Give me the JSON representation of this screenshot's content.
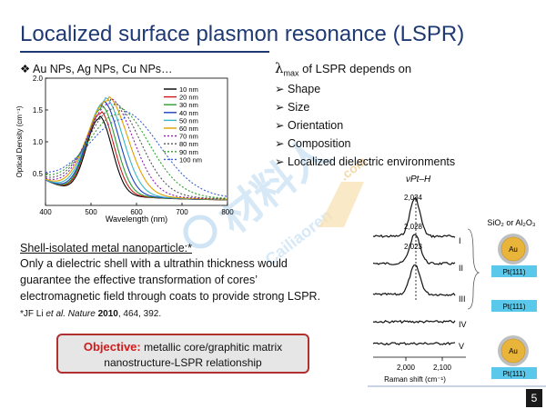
{
  "slide": {
    "title": "Localized surface plasmon resonance (LSPR)",
    "page_number": "5"
  },
  "left": {
    "bullet_glyph": "❖",
    "nps_text": "Au NPs, Ag NPs, Cu NPs…"
  },
  "right": {
    "lambda_symbol": "λ",
    "lambda_sub": "max",
    "lambda_text": " of LSPR depends on",
    "arrow_glyph": "➢",
    "items": [
      "Shape",
      "Size",
      "Orientation",
      "Composition",
      "Localized dielectric environments"
    ]
  },
  "shell": {
    "title": "Shell-isolated metal nanoparticle:*",
    "lines": [
      "Only a dielectric shell with a ultrathin thickness would",
      "guarantee the effective transformation of cores’",
      "electromagnetic field through coats to provide strong LSPR."
    ],
    "ref_prefix": "*JF Li ",
    "ref_journal": "et al. Nature",
    "ref_year": " 2010",
    "ref_rest": ", 464, 392."
  },
  "objective": {
    "label": "Objective:",
    "line1": " metallic core/graphitic matrix",
    "line2": "nanostructure-LSPR relationship"
  },
  "watermark": {
    "text": "材料人",
    "sub": "Cailiaoren",
    "dotcom": ".com"
  },
  "chart_data": [
    {
      "type": "line",
      "xlabel": "Wavelength (nm)",
      "ylabel": "Optical Density (cm⁻¹)",
      "xlim": [
        400,
        800
      ],
      "ylim": [
        0,
        2.0
      ],
      "x_ticks": [
        "400",
        "500",
        "600",
        "700",
        "800"
      ],
      "y_ticks": [
        "0.5",
        "1.0",
        "1.5",
        "2.0"
      ],
      "legend_position": "top-right",
      "series": [
        {
          "name": "10 nm",
          "color": "#000000",
          "dash": "",
          "peak_nm": 518,
          "peak_od": 1.32,
          "width": 28
        },
        {
          "name": "20 nm",
          "color": "#d11919",
          "dash": "",
          "peak_nm": 520,
          "peak_od": 1.4,
          "width": 30
        },
        {
          "name": "30 nm",
          "color": "#2e9e2e",
          "dash": "",
          "peak_nm": 523,
          "peak_od": 1.48,
          "width": 32
        },
        {
          "name": "40 nm",
          "color": "#1b3fbf",
          "dash": "",
          "peak_nm": 527,
          "peak_od": 1.55,
          "width": 35
        },
        {
          "name": "50 nm",
          "color": "#36b6c6",
          "dash": "",
          "peak_nm": 531,
          "peak_od": 1.6,
          "width": 39
        },
        {
          "name": "60 nm",
          "color": "#e0a000",
          "dash": "",
          "peak_nm": 536,
          "peak_od": 1.62,
          "width": 44
        },
        {
          "name": "70 nm",
          "color": "#8a1fb0",
          "dash": "2,2",
          "peak_nm": 542,
          "peak_od": 1.58,
          "width": 50
        },
        {
          "name": "80 nm",
          "color": "#555555",
          "dash": "2,2",
          "peak_nm": 550,
          "peak_od": 1.5,
          "width": 58
        },
        {
          "name": "90 nm",
          "color": "#2e9e2e",
          "dash": "2,2",
          "peak_nm": 560,
          "peak_od": 1.42,
          "width": 68
        },
        {
          "name": "100 nm",
          "color": "#3a5fd0",
          "dash": "2,2",
          "peak_nm": 572,
          "peak_od": 1.35,
          "width": 80
        }
      ]
    },
    {
      "type": "line",
      "title": "νPt–H",
      "xlabel": "Raman shift (cm⁻¹)",
      "x_ticks": [
        "2,000",
        "2,100"
      ],
      "peak_labels": [
        "2,034",
        "2,028",
        "2,023"
      ],
      "series": [
        {
          "name": "I",
          "peak": 2034
        },
        {
          "name": "II",
          "peak": 2028
        },
        {
          "name": "III",
          "peak": 2023
        },
        {
          "name": "IV",
          "peak": null
        },
        {
          "name": "V",
          "peak": null
        }
      ],
      "schematics": {
        "label_top": "SiO₂ or Al₂O₃",
        "core": "Au",
        "substrate": "Pt(111)"
      }
    }
  ]
}
